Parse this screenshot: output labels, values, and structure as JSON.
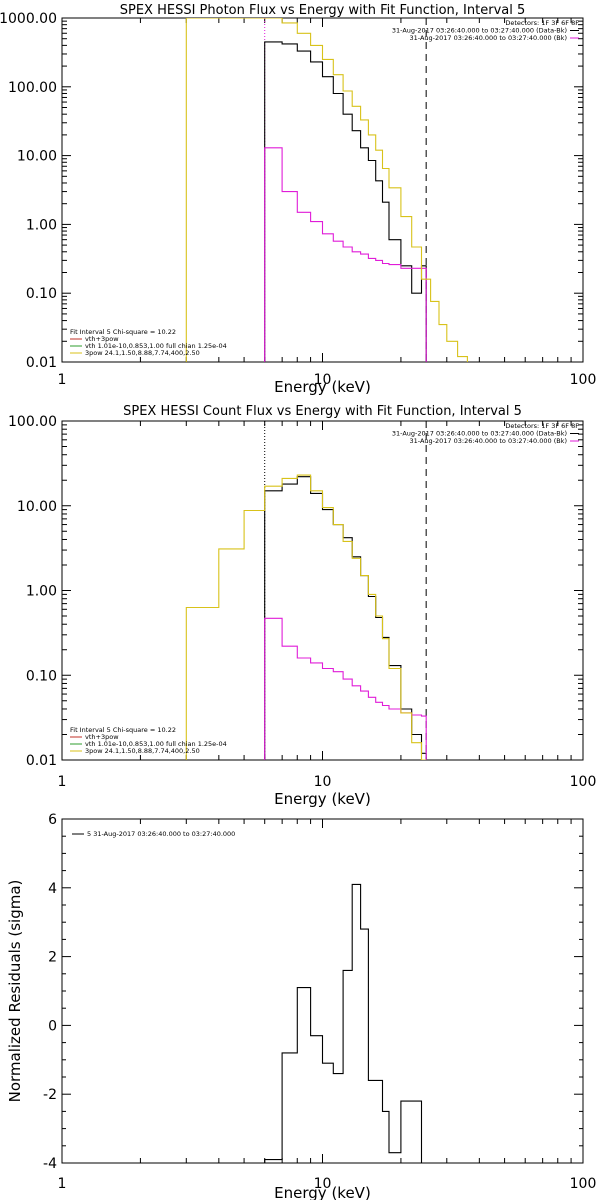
{
  "colors": {
    "data": "#000000",
    "model": "#d8c21a",
    "bk": "#e01cd8",
    "vth": "#2e9c2e",
    "fitlegend": "#c0302a"
  },
  "chart_data": [
    {
      "type": "line",
      "title": "SPEX HESSI Photon Flux vs Energy with Fit Function, Interval 5",
      "xlabel": "Energy (keV)",
      "ylabel": "",
      "xscale": "log",
      "yscale": "log",
      "xlim": [
        1,
        100
      ],
      "ylim": [
        0.01,
        1000
      ],
      "xticks": [
        {
          "v": 1,
          "label": "1"
        },
        {
          "v": 10,
          "label": "10"
        },
        {
          "v": 100,
          "label": "100"
        }
      ],
      "yticks": [
        {
          "v": 0.01,
          "label": "0.01"
        },
        {
          "v": 0.1,
          "label": "0.10"
        },
        {
          "v": 1,
          "label": "1.00"
        },
        {
          "v": 10,
          "label": "10.00"
        },
        {
          "v": 100,
          "label": "100.00"
        },
        {
          "v": 1000,
          "label": "1000.00"
        }
      ],
      "vlines": [
        {
          "x": 6,
          "style": "dotted",
          "color": "bk"
        },
        {
          "x": 25,
          "style": "dashed",
          "color": "data"
        }
      ],
      "legend_top": [
        "Detectors: 1F 3F 6F 8F",
        "31-Aug-2017 03:26:40.000 to 03:27:40.000 (Data-Bk)",
        "31-Aug-2017 03:26:40.000 to 03:27:40.000 (Bk)"
      ],
      "legend_bottom": {
        "header": "Fit Interval 5   Chi-square = 10.22",
        "items": [
          "vth+3pow",
          "vth 1.01e-10,0.853,1.00  full chian 1.25e-04",
          "3pow 24.1,1.50,8.88,7.74,400,2.50"
        ]
      },
      "series": [
        {
          "name": "Data-Bk",
          "color": "data",
          "edges": [
            6,
            7,
            8,
            9,
            10,
            11,
            12,
            13,
            14,
            15,
            16,
            17,
            18,
            20,
            22,
            24,
            25
          ],
          "values": [
            450,
            420,
            330,
            230,
            140,
            80,
            40,
            23,
            13,
            8.5,
            4.3,
            2.1,
            0.6,
            0.25,
            0.1,
            0.25
          ]
        },
        {
          "name": "Bk",
          "color": "bk",
          "edges": [
            6,
            7,
            8,
            9,
            10,
            11,
            12,
            13,
            14,
            15,
            16,
            17,
            18,
            20,
            22,
            24,
            25
          ],
          "values": [
            13,
            3,
            1.5,
            1.1,
            0.73,
            0.57,
            0.47,
            0.4,
            0.37,
            0.32,
            0.3,
            0.27,
            0.26,
            0.23,
            0.23,
            0.23
          ]
        },
        {
          "name": "vth+3pow",
          "color": "model",
          "edges": [
            3,
            4,
            5,
            6,
            7,
            8,
            9,
            10,
            11,
            12,
            13,
            14,
            15,
            16,
            17,
            18,
            20,
            22,
            24,
            26,
            28,
            30,
            33,
            36
          ],
          "values": [
            1000,
            1000,
            1000,
            1000,
            850,
            600,
            400,
            250,
            150,
            87,
            52,
            33,
            20,
            12,
            6.5,
            3.4,
            1.3,
            0.47,
            0.16,
            0.076,
            0.035,
            0.02,
            0.012
          ]
        }
      ]
    },
    {
      "type": "line",
      "title": "SPEX HESSI Count Flux vs Energy with Fit Function, Interval 5",
      "xlabel": "Energy (keV)",
      "ylabel": "",
      "xscale": "log",
      "yscale": "log",
      "xlim": [
        1,
        100
      ],
      "ylim": [
        0.01,
        100
      ],
      "xticks": [
        {
          "v": 1,
          "label": "1"
        },
        {
          "v": 10,
          "label": "10"
        },
        {
          "v": 100,
          "label": "100"
        }
      ],
      "yticks": [
        {
          "v": 0.01,
          "label": "0.01"
        },
        {
          "v": 0.1,
          "label": "0.10"
        },
        {
          "v": 1,
          "label": "1.00"
        },
        {
          "v": 10,
          "label": "10.00"
        },
        {
          "v": 100,
          "label": "100.00"
        }
      ],
      "vlines": [
        {
          "x": 6,
          "style": "dotted",
          "color": "data"
        },
        {
          "x": 25,
          "style": "dashed",
          "color": "data"
        }
      ],
      "legend_top": [
        "Detectors: 1F 3F 6F 8F",
        "31-Aug-2017 03:26:40.000 to 03:27:40.000 (Data-Bk)",
        "31-Aug-2017 03:26:40.000 to 03:27:40.000 (Bk)"
      ],
      "legend_bottom": {
        "header": "Fit Interval 5   Chi-square = 10.22",
        "items": [
          "vth+3pow",
          "vth 1.01e-10,0.853,1.00  full chian 1.25e-04",
          "3pow 24.1,1.50,8.88,7.74,400,2.50"
        ]
      },
      "series": [
        {
          "name": "Data-Bk",
          "color": "data",
          "edges": [
            6,
            7,
            8,
            9,
            10,
            11,
            12,
            13,
            14,
            15,
            16,
            17,
            18,
            20,
            22,
            24,
            25
          ],
          "values": [
            15,
            18,
            22,
            14,
            9,
            6,
            4.2,
            2.5,
            1.5,
            0.85,
            0.48,
            0.28,
            0.13,
            0.04,
            0.02,
            0.012
          ]
        },
        {
          "name": "Bk",
          "color": "bk",
          "edges": [
            6,
            7,
            8,
            9,
            10,
            11,
            12,
            13,
            14,
            15,
            16,
            17,
            18,
            20,
            22,
            24,
            25
          ],
          "values": [
            0.47,
            0.22,
            0.16,
            0.14,
            0.12,
            0.11,
            0.09,
            0.075,
            0.065,
            0.055,
            0.048,
            0.044,
            0.04,
            0.036,
            0.034,
            0.033
          ]
        },
        {
          "name": "vth+3pow",
          "color": "model",
          "edges": [
            3,
            4,
            5,
            6,
            7,
            8,
            9,
            10,
            11,
            12,
            13,
            14,
            15,
            16,
            17,
            18,
            20,
            22,
            24,
            25
          ],
          "values": [
            0.63,
            3.1,
            8.8,
            17,
            21,
            23,
            15,
            9.5,
            6,
            3.8,
            2.4,
            1.5,
            0.9,
            0.5,
            0.27,
            0.12,
            0.036,
            0.016,
            0.01
          ]
        }
      ]
    },
    {
      "type": "line",
      "title": "",
      "xlabel": "Energy (keV)",
      "ylabel": "Normalized Residuals (sigma)",
      "xscale": "log",
      "yscale": "linear",
      "xlim": [
        1,
        100
      ],
      "ylim": [
        -4,
        6
      ],
      "xticks": [
        {
          "v": 1,
          "label": "1"
        },
        {
          "v": 10,
          "label": "10"
        },
        {
          "v": 100,
          "label": "100"
        }
      ],
      "yticks": [
        {
          "v": -4,
          "label": "-4"
        },
        {
          "v": -2,
          "label": "-2"
        },
        {
          "v": 0,
          "label": "0"
        },
        {
          "v": 2,
          "label": "2"
        },
        {
          "v": 4,
          "label": "4"
        },
        {
          "v": 6,
          "label": "6"
        }
      ],
      "legend_top": [
        "5  31-Aug-2017 03:26:40.000 to 03:27:40.000"
      ],
      "series": [
        {
          "name": "5",
          "color": "data",
          "edges": [
            6,
            7,
            8,
            9,
            10,
            11,
            12,
            13,
            14,
            15,
            16,
            17,
            18,
            20,
            22,
            24,
            25
          ],
          "values": [
            -3.9,
            -0.8,
            1.1,
            -0.3,
            -1.1,
            -1.4,
            1.6,
            4.1,
            2.8,
            -1.6,
            -1.6,
            -2.5,
            -3.7,
            -2.2,
            -2.2,
            -4.0
          ]
        }
      ]
    }
  ]
}
